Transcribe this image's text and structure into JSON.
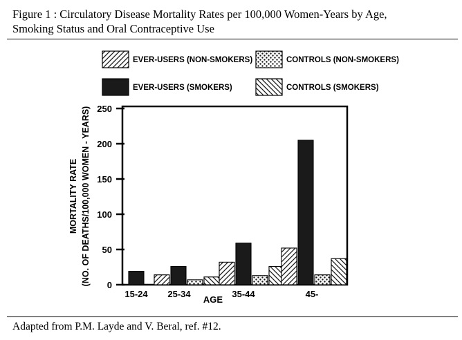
{
  "caption": {
    "line1": "Figure 1 : Circulatory Disease Mortality Rates per 100,000 Women-Years by Age,",
    "line2": "Smoking Status and Oral Contraceptive Use"
  },
  "footer": "Adapted from P.M. Layde and V. Beral, ref. #12.",
  "chart_data": {
    "type": "bar",
    "title": "Circulatory Disease Mortality Rates per 100,000 Women-Years by Age, Smoking Status and Oral Contraceptive Use",
    "xlabel": "AGE",
    "ylabel_line1": "MORTALITY RATE",
    "ylabel_line2": "(NO. OF DEATHS/100,000 WOMEN - YEARS)",
    "ylim": [
      0,
      250
    ],
    "yticks": [
      "0",
      "50",
      "100",
      "150",
      "200",
      "250"
    ],
    "categories": [
      "15-24",
      "25-34",
      "35-44",
      "45-"
    ],
    "legend_position": "top",
    "series": [
      {
        "name": "EVER-USERS (NON-SMOKERS)",
        "pattern": "hatch-forward",
        "values": [
          null,
          14,
          32,
          52
        ]
      },
      {
        "name": "EVER-USERS (SMOKERS)",
        "pattern": "solid",
        "values": [
          19,
          26,
          59,
          205
        ]
      },
      {
        "name": "CONTROLS (NON-SMOKERS)",
        "pattern": "dots",
        "values": [
          null,
          7,
          13,
          14
        ]
      },
      {
        "name": "CONTROLS (SMOKERS)",
        "pattern": "hatch-back",
        "values": [
          null,
          11,
          26,
          37
        ]
      }
    ],
    "colors": {
      "bar_fill": "#1a1a1a",
      "background": "#ffffff"
    }
  }
}
